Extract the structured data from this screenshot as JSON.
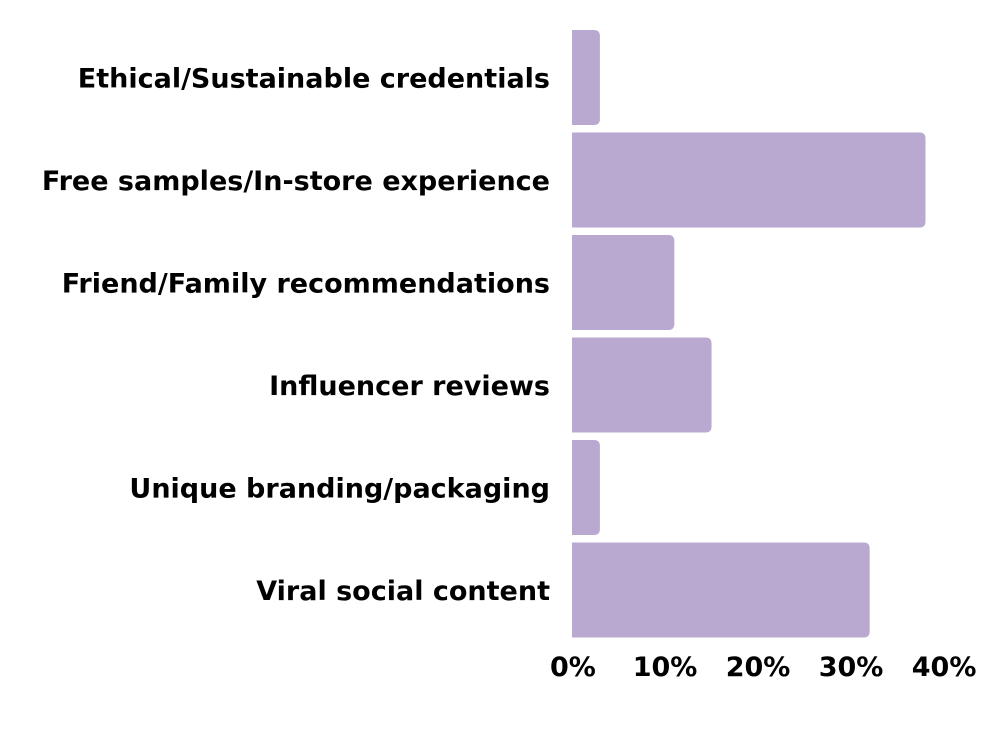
{
  "chart_data": {
    "type": "bar",
    "orientation": "horizontal",
    "title": "",
    "xlabel": "",
    "ylabel": "",
    "categories": [
      "Ethical/Sustainable credentials",
      "Free samples/In-store experience",
      "Friend/Family recommendations",
      "Influencer reviews",
      "Unique branding/packaging",
      "Viral social content"
    ],
    "values": [
      3,
      38,
      11,
      15,
      3,
      32
    ],
    "xlim": [
      0,
      43
    ],
    "x_ticks": [
      0,
      10,
      20,
      30,
      40
    ],
    "x_tick_labels": [
      "0%",
      "10%",
      "20%",
      "30%",
      "40%"
    ],
    "grid": false,
    "legend": "none",
    "bar_color": "#b9a8d0"
  }
}
